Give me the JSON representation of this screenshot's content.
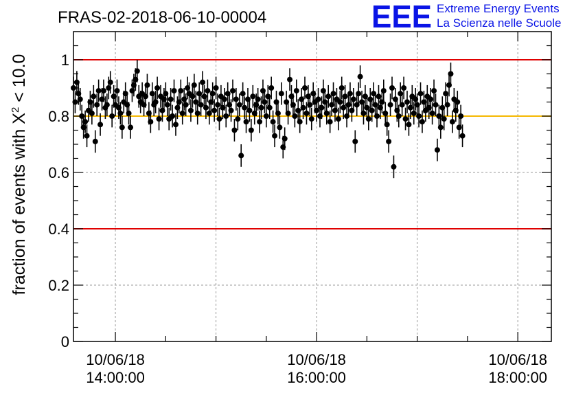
{
  "chart_data": {
    "type": "scatter",
    "title": "FRAS-02-2018-06-10-00004",
    "ylabel_prefix": "fraction of events with ",
    "ylabel_chi": "X",
    "ylabel_sup": "2",
    "ylabel_suffix": " < 10.0",
    "xlabel": "",
    "xlim": [
      "13:35",
      "18:20"
    ],
    "ylim": [
      0,
      1.1
    ],
    "grid": true,
    "yticks": [
      {
        "value": 0,
        "label": "0"
      },
      {
        "value": 0.2,
        "label": "0.2"
      },
      {
        "value": 0.4,
        "label": "0.4"
      },
      {
        "value": 0.6,
        "label": "0.6"
      },
      {
        "value": 0.8,
        "label": "0.8"
      },
      {
        "value": 1.0,
        "label": "1"
      }
    ],
    "xticks": [
      {
        "time": "14:00",
        "date_label": "10/06/18",
        "time_label": "14:00:00"
      },
      {
        "time": "16:00",
        "date_label": "10/06/18",
        "time_label": "16:00:00"
      },
      {
        "time": "18:00",
        "date_label": "10/06/18",
        "time_label": "18:00:00"
      }
    ],
    "reference_lines": [
      {
        "y": 1.0,
        "color": "#e00000"
      },
      {
        "y": 0.8,
        "color": "#f5b800"
      },
      {
        "y": 0.4,
        "color": "#e00000"
      }
    ],
    "series": [
      {
        "marker_color": "#000000",
        "x_start": "13:35",
        "x_step_minutes": 1,
        "error": 0.04,
        "y": [
          0.9,
          0.85,
          0.92,
          0.88,
          0.86,
          0.8,
          0.76,
          0.78,
          0.73,
          0.82,
          0.85,
          0.81,
          0.87,
          0.71,
          0.84,
          0.89,
          0.77,
          0.86,
          0.89,
          0.83,
          0.84,
          0.9,
          0.92,
          0.8,
          0.87,
          0.84,
          0.89,
          0.83,
          0.81,
          0.76,
          0.85,
          0.88,
          0.84,
          0.81,
          0.76,
          0.89,
          0.91,
          0.93,
          0.96,
          0.87,
          0.85,
          0.88,
          0.84,
          0.87,
          0.91,
          0.81,
          0.78,
          0.88,
          0.84,
          0.85,
          0.9,
          0.79,
          0.87,
          0.82,
          0.86,
          0.88,
          0.84,
          0.79,
          0.86,
          0.8,
          0.89,
          0.77,
          0.83,
          0.85,
          0.89,
          0.81,
          0.86,
          0.84,
          0.9,
          0.88,
          0.82,
          0.87,
          0.91,
          0.85,
          0.81,
          0.88,
          0.84,
          0.92,
          0.87,
          0.83,
          0.89,
          0.81,
          0.85,
          0.88,
          0.82,
          0.9,
          0.84,
          0.79,
          0.87,
          0.83,
          0.86,
          0.8,
          0.88,
          0.84,
          0.82,
          0.89,
          0.75,
          0.86,
          0.79,
          0.84,
          0.66,
          0.88,
          0.83,
          0.78,
          0.86,
          0.82,
          0.75,
          0.87,
          0.81,
          0.84,
          0.86,
          0.78,
          0.83,
          0.89,
          0.85,
          0.8,
          0.87,
          0.83,
          0.9,
          0.78,
          0.73,
          0.85,
          0.81,
          0.76,
          0.88,
          0.69,
          0.72,
          0.85,
          0.81,
          0.93,
          0.87,
          0.84,
          0.8,
          0.89,
          0.82,
          0.78,
          0.86,
          0.83,
          0.9,
          0.81,
          0.87,
          0.84,
          0.79,
          0.88,
          0.85,
          0.82,
          0.86,
          0.8,
          0.83,
          0.89,
          0.85,
          0.81,
          0.87,
          0.78,
          0.84,
          0.88,
          0.82,
          0.86,
          0.79,
          0.85,
          0.9,
          0.83,
          0.87,
          0.8,
          0.84,
          0.88,
          0.82,
          0.86,
          0.71,
          0.84,
          0.88,
          0.94,
          0.85,
          0.81,
          0.87,
          0.83,
          0.79,
          0.86,
          0.82,
          0.88,
          0.84,
          0.8,
          0.87,
          0.83,
          0.85,
          0.89,
          0.81,
          0.77,
          0.71,
          0.84,
          0.9,
          0.62,
          0.86,
          0.82,
          0.8,
          0.88,
          0.84,
          0.9,
          0.79,
          0.85,
          0.77,
          0.83,
          0.87,
          0.81,
          0.86,
          0.84,
          0.8,
          0.88,
          0.78,
          0.85,
          0.82,
          0.87,
          0.83,
          0.86,
          0.81,
          0.89,
          0.84,
          0.68,
          0.8,
          0.76,
          0.83,
          0.79,
          0.88,
          0.84,
          0.91,
          0.95,
          0.78,
          0.86,
          0.82,
          0.85,
          0.76,
          0.8,
          0.73
        ]
      }
    ]
  },
  "logo": {
    "mark": "EEE",
    "line1": "Extreme Energy Events",
    "line2": "La Scienza nelle Scuole",
    "color": "#0a14e6"
  }
}
